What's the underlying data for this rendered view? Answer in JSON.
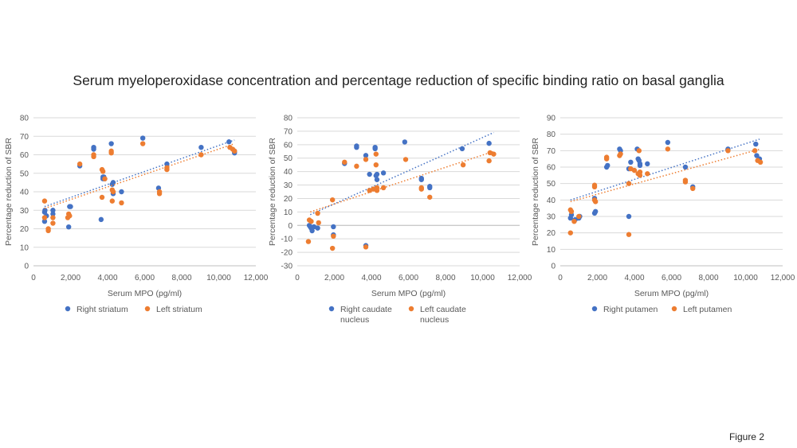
{
  "title": "Serum myeloperoxidase concentration and percentage reduction of specific binding ratio on basal ganglia",
  "figure_label": "Figure 2",
  "colors": {
    "right": "#4472C4",
    "left": "#ED7D31",
    "grid": "#D9D9D9",
    "axis": "#BFBFBF",
    "text": "#595959"
  },
  "chart_data": [
    {
      "type": "scatter",
      "title": "",
      "xlabel": "Serum MPO (pg/ml)",
      "ylabel": "Percentage reduction of SBR",
      "xlim": [
        0,
        12000
      ],
      "ylim": [
        0,
        80
      ],
      "x_ticks": [
        "0",
        "2,000",
        "4,000",
        "6,000",
        "8,000",
        "10,000",
        "12,000"
      ],
      "y_ticks": [
        "0",
        "10",
        "20",
        "30",
        "40",
        "50",
        "60",
        "70",
        "80"
      ],
      "grid": true,
      "trendline": "linear, dotted",
      "legend_position": "bottom",
      "series": [
        {
          "name": "Right striatum",
          "points": [
            [
              600,
              24
            ],
            [
              600,
              29
            ],
            [
              620,
              30
            ],
            [
              700,
              27
            ],
            [
              1050,
              28
            ],
            [
              1050,
              30
            ],
            [
              1900,
              21
            ],
            [
              1950,
              32
            ],
            [
              2000,
              32
            ],
            [
              2500,
              54
            ],
            [
              3250,
              63
            ],
            [
              3250,
              64
            ],
            [
              3650,
              25
            ],
            [
              3750,
              47
            ],
            [
              3750,
              48
            ],
            [
              3800,
              48
            ],
            [
              3850,
              47
            ],
            [
              4200,
              66
            ],
            [
              4250,
              44
            ],
            [
              4300,
              45
            ],
            [
              4300,
              39
            ],
            [
              4750,
              40
            ],
            [
              5900,
              69
            ],
            [
              6750,
              42
            ],
            [
              7200,
              55
            ],
            [
              9050,
              64
            ],
            [
              10550,
              67
            ],
            [
              10850,
              62
            ],
            [
              10850,
              61
            ]
          ],
          "trend": [
            [
              600,
              32
            ],
            [
              10850,
              68
            ]
          ]
        },
        {
          "name": "Left striatum",
          "points": [
            [
              600,
              35
            ],
            [
              600,
              26
            ],
            [
              800,
              20
            ],
            [
              800,
              19
            ],
            [
              1050,
              23
            ],
            [
              1050,
              26
            ],
            [
              1850,
              26
            ],
            [
              1900,
              28
            ],
            [
              1950,
              27
            ],
            [
              2500,
              55
            ],
            [
              3250,
              59
            ],
            [
              3250,
              60
            ],
            [
              3700,
              37
            ],
            [
              3700,
              52
            ],
            [
              3750,
              51
            ],
            [
              3850,
              47
            ],
            [
              4200,
              61
            ],
            [
              4200,
              62
            ],
            [
              4250,
              35
            ],
            [
              4250,
              41
            ],
            [
              4300,
              40
            ],
            [
              4750,
              34
            ],
            [
              5900,
              66
            ],
            [
              6800,
              39
            ],
            [
              6800,
              40
            ],
            [
              7200,
              53
            ],
            [
              7200,
              52
            ],
            [
              9050,
              60
            ],
            [
              10600,
              64
            ],
            [
              10750,
              63
            ],
            [
              10850,
              62
            ]
          ],
          "trend": [
            [
              600,
              31
            ],
            [
              10850,
              66
            ]
          ]
        }
      ]
    },
    {
      "type": "scatter",
      "title": "",
      "xlabel": "Serum MPO (pg/ml)",
      "ylabel": "Percentage reduction of SBR",
      "xlim": [
        0,
        12000
      ],
      "ylim": [
        -30,
        80
      ],
      "x_ticks": [
        "0",
        "2,000",
        "4,000",
        "6,000",
        "8,000",
        "10,000",
        "12,000"
      ],
      "y_ticks": [
        "-30",
        "-20",
        "-10",
        "0",
        "10",
        "20",
        "30",
        "40",
        "50",
        "60",
        "70",
        "80"
      ],
      "grid": true,
      "trendline": "linear, dotted",
      "legend_position": "bottom",
      "series": [
        {
          "name": "Right caudate nucleus",
          "points": [
            [
              650,
              0
            ],
            [
              700,
              -1
            ],
            [
              750,
              -2
            ],
            [
              800,
              -4
            ],
            [
              900,
              -1
            ],
            [
              1100,
              -2
            ],
            [
              1950,
              -1
            ],
            [
              1950,
              -7
            ],
            [
              2550,
              46
            ],
            [
              3200,
              58
            ],
            [
              3200,
              59
            ],
            [
              3700,
              -15
            ],
            [
              3700,
              52
            ],
            [
              3900,
              38
            ],
            [
              4200,
              58
            ],
            [
              4200,
              57
            ],
            [
              4250,
              37
            ],
            [
              4300,
              34
            ],
            [
              4300,
              38
            ],
            [
              4650,
              39
            ],
            [
              5800,
              62
            ],
            [
              6700,
              35
            ],
            [
              6700,
              34
            ],
            [
              7150,
              29
            ],
            [
              7150,
              28
            ],
            [
              8900,
              57
            ],
            [
              10350,
              61
            ]
          ],
          "trend": [
            [
              700,
              8
            ],
            [
              10600,
              69
            ]
          ]
        },
        {
          "name": "Left caudate nucleus",
          "points": [
            [
              600,
              -12
            ],
            [
              650,
              4
            ],
            [
              750,
              3
            ],
            [
              1100,
              9
            ],
            [
              1150,
              2
            ],
            [
              1900,
              19
            ],
            [
              1950,
              -8
            ],
            [
              1900,
              -17
            ],
            [
              2550,
              47
            ],
            [
              3200,
              44
            ],
            [
              3700,
              -16
            ],
            [
              3700,
              49
            ],
            [
              3900,
              26
            ],
            [
              4100,
              27
            ],
            [
              4250,
              45
            ],
            [
              4250,
              53
            ],
            [
              4300,
              26
            ],
            [
              4300,
              28
            ],
            [
              4650,
              28
            ],
            [
              5850,
              49
            ],
            [
              6700,
              27
            ],
            [
              6700,
              28
            ],
            [
              7150,
              21
            ],
            [
              8950,
              45
            ],
            [
              10350,
              48
            ],
            [
              10400,
              54
            ],
            [
              10600,
              53
            ]
          ],
          "trend": [
            [
              700,
              10
            ],
            [
              10600,
              55
            ]
          ]
        }
      ]
    },
    {
      "type": "scatter",
      "title": "",
      "xlabel": "Serum MPO (pg/ml)",
      "ylabel": "Percentage reduction of SBR",
      "xlim": [
        0,
        12000
      ],
      "ylim": [
        0,
        90
      ],
      "x_ticks": [
        "0",
        "2,000",
        "4,000",
        "6,000",
        "8,000",
        "10,000",
        "12,000"
      ],
      "y_ticks": [
        "0",
        "10",
        "20",
        "30",
        "40",
        "50",
        "60",
        "70",
        "80",
        "90"
      ],
      "grid": true,
      "trendline": "linear, dotted",
      "legend_position": "bottom",
      "series": [
        {
          "name": "Right putamen",
          "points": [
            [
              550,
              29
            ],
            [
              600,
              31
            ],
            [
              800,
              28
            ],
            [
              1000,
              29
            ],
            [
              1050,
              30
            ],
            [
              1850,
              41
            ],
            [
              1850,
              32
            ],
            [
              1900,
              33
            ],
            [
              2500,
              60
            ],
            [
              2550,
              61
            ],
            [
              3200,
              71
            ],
            [
              3250,
              70
            ],
            [
              3700,
              30
            ],
            [
              3700,
              59
            ],
            [
              3800,
              63
            ],
            [
              4150,
              71
            ],
            [
              4200,
              65
            ],
            [
              4250,
              64
            ],
            [
              4300,
              62
            ],
            [
              4300,
              61
            ],
            [
              4700,
              62
            ],
            [
              5800,
              75
            ],
            [
              6750,
              60
            ],
            [
              7150,
              48
            ],
            [
              9050,
              71
            ],
            [
              10550,
              74
            ],
            [
              10600,
              67
            ],
            [
              10750,
              65
            ]
          ],
          "trend": [
            [
              550,
              40
            ],
            [
              10750,
              77
            ]
          ]
        },
        {
          "name": "Left putamen",
          "points": [
            [
              550,
              34
            ],
            [
              550,
              20
            ],
            [
              600,
              33
            ],
            [
              750,
              27
            ],
            [
              1000,
              30
            ],
            [
              1850,
              48
            ],
            [
              1850,
              49
            ],
            [
              1850,
              40
            ],
            [
              1900,
              39
            ],
            [
              2500,
              65
            ],
            [
              2500,
              66
            ],
            [
              3200,
              67
            ],
            [
              3250,
              68
            ],
            [
              3700,
              19
            ],
            [
              3700,
              50
            ],
            [
              3800,
              59
            ],
            [
              4000,
              58
            ],
            [
              4200,
              56
            ],
            [
              4250,
              70
            ],
            [
              4300,
              57
            ],
            [
              4300,
              55
            ],
            [
              4700,
              56
            ],
            [
              5800,
              71
            ],
            [
              6750,
              51
            ],
            [
              6750,
              52
            ],
            [
              7150,
              47
            ],
            [
              9050,
              70
            ],
            [
              10500,
              70
            ],
            [
              10650,
              64
            ],
            [
              10800,
              63
            ]
          ],
          "trend": [
            [
              550,
              39
            ],
            [
              10800,
              71
            ]
          ]
        }
      ]
    }
  ]
}
